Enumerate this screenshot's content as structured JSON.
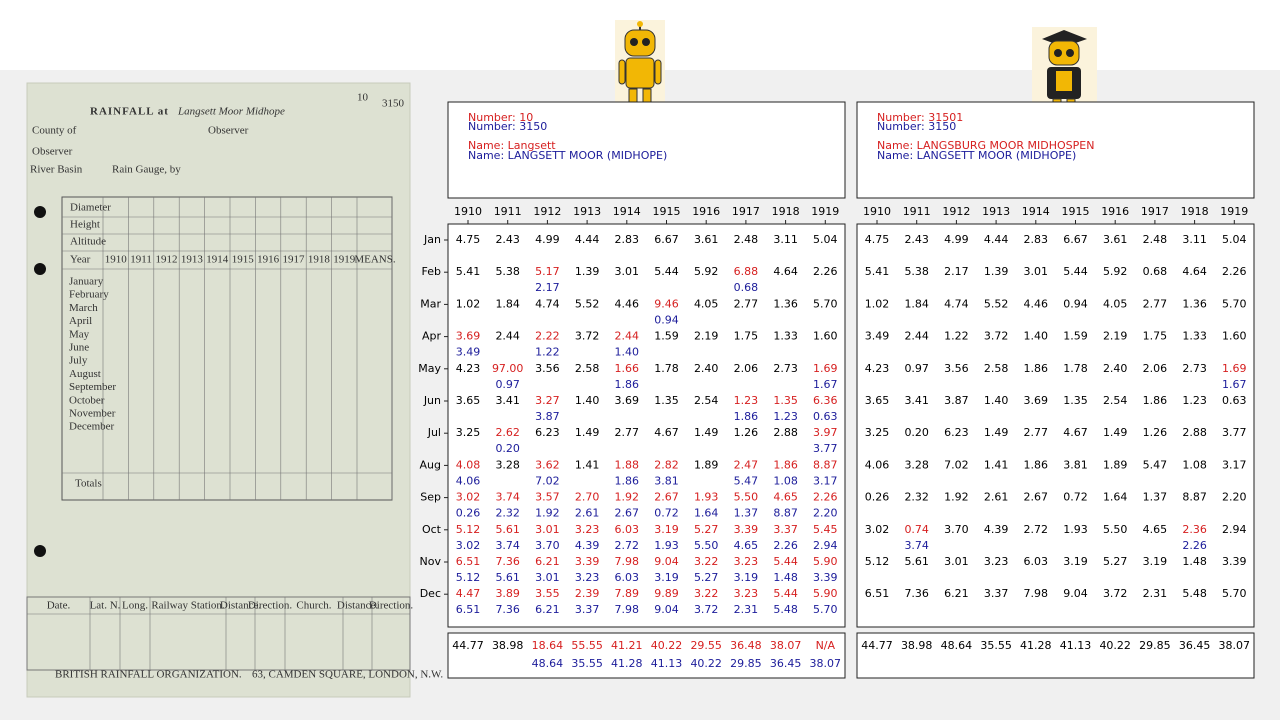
{
  "card": {
    "title": "RAINFALL at",
    "place": "Langsett Moor Midhope",
    "number": "10",
    "number_alt": "3150",
    "fields": [
      "County of",
      "Observer",
      "River Basin",
      "Rain Gauge, by"
    ],
    "specs": [
      "Diameter",
      "Height",
      "Altitude",
      "Year"
    ],
    "means": "MEANS.",
    "months": [
      "January",
      "February",
      "March",
      "April",
      "May",
      "June",
      "July",
      "August",
      "September",
      "October",
      "November",
      "December"
    ],
    "totals": "Totals",
    "bottom_headers": [
      "Date.",
      "Lat. N.",
      "Long.",
      "Railway Station.",
      "Distance.",
      "Direction.",
      "Church.",
      "Distance.",
      "Direction."
    ],
    "footer_left": "BRITISH RAINFALL ORGANIZATION.",
    "footer_right": "63, CAMDEN SQUARE, LONDON, N.W."
  },
  "years": [
    "1910",
    "1911",
    "1912",
    "1913",
    "1914",
    "1915",
    "1916",
    "1917",
    "1918",
    "1919"
  ],
  "months": [
    "Jan",
    "Feb",
    "Mar",
    "Apr",
    "May",
    "Jun",
    "Jul",
    "Aug",
    "Sep",
    "Oct",
    "Nov",
    "Dec"
  ],
  "panels": [
    {
      "header": [
        "Number: 10",
        "Number: 3150",
        "Name: Langsett",
        "Name: LANGSETT MOOR (MIDHOPE)"
      ],
      "rows": [
        {
          "cells": [
            "4.75",
            "2.43",
            "4.99",
            "4.44",
            "2.83",
            "6.67",
            "3.61",
            "2.48",
            "3.11",
            "5.04"
          ]
        },
        {
          "cells": [
            "5.41",
            "5.38",
            [
              "5.17",
              "2.17"
            ],
            "1.39",
            "3.01",
            "5.44",
            "5.92",
            [
              "6.88",
              "0.68"
            ],
            "4.64",
            "2.26"
          ]
        },
        {
          "cells": [
            "1.02",
            "1.84",
            "4.74",
            "5.52",
            "4.46",
            [
              "9.46",
              "0.94"
            ],
            "4.05",
            "2.77",
            "1.36",
            "5.70"
          ]
        },
        {
          "cells": [
            [
              "3.69",
              "3.49"
            ],
            "2.44",
            [
              "2.22",
              "1.22"
            ],
            "3.72",
            [
              "2.44",
              "1.40"
            ],
            "1.59",
            "2.19",
            "1.75",
            "1.33",
            "1.60"
          ]
        },
        {
          "cells": [
            "4.23",
            [
              "97.00",
              "0.97"
            ],
            "3.56",
            "2.58",
            [
              "1.66",
              "1.86"
            ],
            "1.78",
            "2.40",
            "2.06",
            "2.73",
            [
              "1.69",
              "1.67"
            ]
          ]
        },
        {
          "cells": [
            "3.65",
            "3.41",
            [
              "3.27",
              "3.87"
            ],
            "1.40",
            "3.69",
            "1.35",
            "2.54",
            [
              "1.23",
              "1.86"
            ],
            [
              "1.35",
              "1.23"
            ],
            [
              "6.36",
              "0.63"
            ]
          ]
        },
        {
          "cells": [
            "3.25",
            [
              "2.62",
              "0.20"
            ],
            "6.23",
            "1.49",
            "2.77",
            "4.67",
            "1.49",
            "1.26",
            "2.88",
            [
              "3.97",
              "3.77"
            ]
          ]
        },
        {
          "cells": [
            [
              "4.08",
              "4.06"
            ],
            "3.28",
            [
              "3.62",
              "7.02"
            ],
            "1.41",
            [
              "1.88",
              "1.86"
            ],
            [
              "2.82",
              "3.81"
            ],
            "1.89",
            [
              "2.47",
              "5.47"
            ],
            [
              "1.86",
              "1.08"
            ],
            [
              "8.87",
              "3.17"
            ]
          ]
        },
        {
          "cells": [
            [
              "3.02",
              "0.26"
            ],
            [
              "3.74",
              "2.32"
            ],
            [
              "3.57",
              "1.92"
            ],
            [
              "2.70",
              "2.61"
            ],
            [
              "1.92",
              "2.67"
            ],
            [
              "2.67",
              "0.72"
            ],
            [
              "1.93",
              "1.64"
            ],
            [
              "5.50",
              "1.37"
            ],
            [
              "4.65",
              "8.87"
            ],
            [
              "2.26",
              "2.20"
            ]
          ]
        },
        {
          "cells": [
            [
              "5.12",
              "3.02"
            ],
            [
              "5.61",
              "3.74"
            ],
            [
              "3.01",
              "3.70"
            ],
            [
              "3.23",
              "4.39"
            ],
            [
              "6.03",
              "2.72"
            ],
            [
              "3.19",
              "1.93"
            ],
            [
              "5.27",
              "5.50"
            ],
            [
              "3.39",
              "4.65"
            ],
            [
              "3.37",
              "2.26"
            ],
            [
              "5.45",
              "2.94"
            ]
          ]
        },
        {
          "cells": [
            [
              "6.51",
              "5.12"
            ],
            [
              "7.36",
              "5.61"
            ],
            [
              "6.21",
              "3.01"
            ],
            [
              "3.39",
              "3.23"
            ],
            [
              "7.98",
              "6.03"
            ],
            [
              "9.04",
              "3.19"
            ],
            [
              "3.22",
              "5.27"
            ],
            [
              "3.23",
              "3.19"
            ],
            [
              "5.44",
              "1.48"
            ],
            [
              "5.90",
              "3.39"
            ]
          ]
        },
        {
          "cells": [
            [
              "4.47",
              "6.51"
            ],
            [
              "3.89",
              "7.36"
            ],
            [
              "3.55",
              "6.21"
            ],
            [
              "2.39",
              "3.37"
            ],
            [
              "7.89",
              "7.98"
            ],
            [
              "9.89",
              "9.04"
            ],
            [
              "3.22",
              "3.72"
            ],
            [
              "3.23",
              "2.31"
            ],
            [
              "5.44",
              "5.48"
            ],
            [
              "5.90",
              "5.70"
            ]
          ]
        }
      ],
      "totals": [
        "44.77",
        "38.98",
        [
          "18.64",
          "48.64"
        ],
        [
          "55.55",
          "35.55"
        ],
        [
          "41.21",
          "41.28"
        ],
        [
          "40.22",
          "41.13"
        ],
        [
          "29.55",
          "40.22"
        ],
        [
          "36.48",
          "29.85"
        ],
        [
          "38.07",
          "36.45"
        ],
        [
          "N/A",
          "38.07"
        ]
      ]
    },
    {
      "header": [
        "Number: 31501",
        "Number: 3150",
        "Name: LANGSBURG MOOR MIDHOSPEN",
        "Name: LANGSETT MOOR (MIDHOPE)"
      ],
      "rows": [
        {
          "cells": [
            "4.75",
            "2.43",
            "4.99",
            "4.44",
            "2.83",
            "6.67",
            "3.61",
            "2.48",
            "3.11",
            "5.04"
          ]
        },
        {
          "cells": [
            "5.41",
            "5.38",
            "2.17",
            "1.39",
            "3.01",
            "5.44",
            "5.92",
            "0.68",
            "4.64",
            "2.26"
          ]
        },
        {
          "cells": [
            "1.02",
            "1.84",
            "4.74",
            "5.52",
            "4.46",
            "0.94",
            "4.05",
            "2.77",
            "1.36",
            "5.70"
          ]
        },
        {
          "cells": [
            "3.49",
            "2.44",
            "1.22",
            "3.72",
            "1.40",
            "1.59",
            "2.19",
            "1.75",
            "1.33",
            "1.60"
          ]
        },
        {
          "cells": [
            "4.23",
            "0.97",
            "3.56",
            "2.58",
            "1.86",
            "1.78",
            "2.40",
            "2.06",
            "2.73",
            [
              "1.69",
              "1.67"
            ]
          ]
        },
        {
          "cells": [
            "3.65",
            "3.41",
            "3.87",
            "1.40",
            "3.69",
            "1.35",
            "2.54",
            "1.86",
            "1.23",
            "0.63"
          ]
        },
        {
          "cells": [
            "3.25",
            "0.20",
            "6.23",
            "1.49",
            "2.77",
            "4.67",
            "1.49",
            "1.26",
            "2.88",
            "3.77"
          ]
        },
        {
          "cells": [
            "4.06",
            "3.28",
            "7.02",
            "1.41",
            "1.86",
            "3.81",
            "1.89",
            "5.47",
            "1.08",
            "3.17"
          ]
        },
        {
          "cells": [
            "0.26",
            "2.32",
            "1.92",
            "2.61",
            "2.67",
            "0.72",
            "1.64",
            "1.37",
            "8.87",
            "2.20"
          ]
        },
        {
          "cells": [
            "3.02",
            [
              "0.74",
              "3.74"
            ],
            "3.70",
            "4.39",
            "2.72",
            "1.93",
            "5.50",
            "4.65",
            [
              "2.36",
              "2.26"
            ],
            "2.94"
          ]
        },
        {
          "cells": [
            "5.12",
            "5.61",
            "3.01",
            "3.23",
            "6.03",
            "3.19",
            "5.27",
            "3.19",
            "1.48",
            "3.39"
          ]
        },
        {
          "cells": [
            "6.51",
            "7.36",
            "6.21",
            "3.37",
            "7.98",
            "9.04",
            "3.72",
            "2.31",
            "5.48",
            "5.70"
          ]
        }
      ],
      "totals": [
        "44.77",
        "38.98",
        "48.64",
        "35.55",
        "41.28",
        "41.13",
        "40.22",
        "29.85",
        "36.45",
        "38.07"
      ]
    }
  ]
}
